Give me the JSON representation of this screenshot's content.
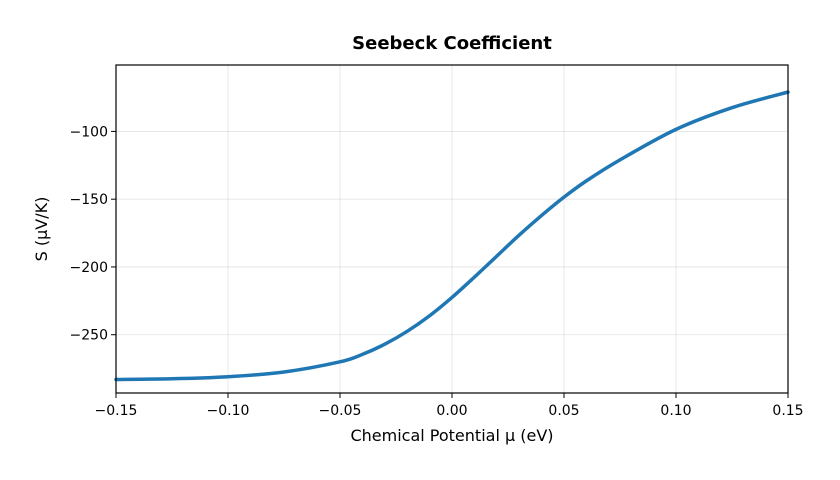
{
  "chart_data": {
    "type": "line",
    "title": "Seebeck Coefficient",
    "xlabel": "Chemical Potential μ (eV)",
    "ylabel": "S (μV/K)",
    "xlim": [
      -0.15,
      0.15
    ],
    "ylim": [
      -293,
      -51
    ],
    "x_ticks": [
      -0.15,
      -0.1,
      -0.05,
      0.0,
      0.05,
      0.1,
      0.15
    ],
    "x_tick_labels": [
      "−0.15",
      "−0.10",
      "−0.05",
      "0.00",
      "0.05",
      "0.10",
      "0.15"
    ],
    "y_ticks": [
      -100,
      -150,
      -200,
      -250
    ],
    "y_tick_labels": [
      "−100",
      "−150",
      "−200",
      "−250"
    ],
    "grid": true,
    "series": [
      {
        "color": "#1f77b4",
        "x": [
          -0.15,
          -0.125,
          -0.1,
          -0.075,
          -0.05,
          -0.04,
          -0.03,
          -0.02,
          -0.01,
          0.0,
          0.01,
          0.02,
          0.03,
          0.04,
          0.05,
          0.06,
          0.075,
          0.1,
          0.125,
          0.15
        ],
        "y": [
          -283,
          -282.5,
          -281,
          -277.5,
          -270,
          -264.5,
          -257,
          -247.5,
          -236,
          -222.5,
          -207.5,
          -192,
          -176.5,
          -162,
          -148.5,
          -136.5,
          -121,
          -98.5,
          -82.5,
          -71
        ]
      }
    ]
  }
}
